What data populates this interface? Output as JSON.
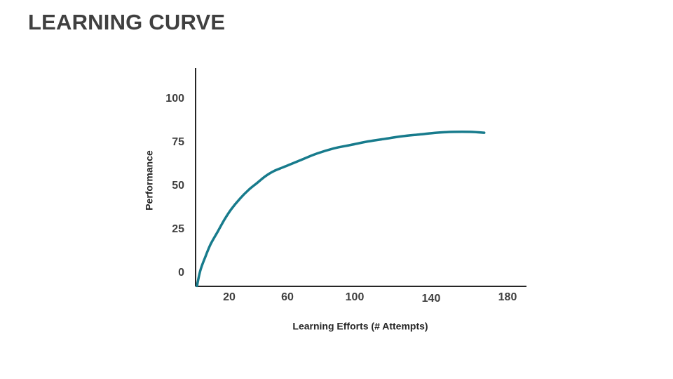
{
  "slide": {
    "title": "LEARNING CURVE"
  },
  "colors": {
    "title": "#404040",
    "axis": "#262626",
    "tick_label": "#404040",
    "curve": "#177b8c"
  },
  "chart_data": {
    "type": "line",
    "title": "",
    "xlabel": "Learning Efforts (# Attempts)",
    "ylabel": "Performance",
    "x_tick_labels": [
      "20",
      "60",
      "100",
      "140",
      "180"
    ],
    "y_tick_labels": [
      "0",
      "25",
      "50",
      "75",
      "100"
    ],
    "xlim": [
      0,
      180
    ],
    "ylim": [
      0,
      100
    ],
    "grid": false,
    "legend": "none",
    "series": [
      {
        "x": [
          0,
          2,
          5,
          8,
          12,
          16,
          20,
          25,
          30,
          35,
          40,
          45,
          50,
          55,
          60,
          70,
          80,
          90,
          100,
          110,
          120,
          130,
          140,
          150,
          160,
          168
        ],
        "y": [
          -7,
          2,
          10,
          17,
          24,
          31,
          37,
          43,
          48,
          52,
          56,
          59,
          61,
          63,
          65,
          69,
          72,
          74,
          76,
          77.5,
          79,
          80,
          81,
          81.5,
          81.5,
          81
        ]
      }
    ]
  }
}
